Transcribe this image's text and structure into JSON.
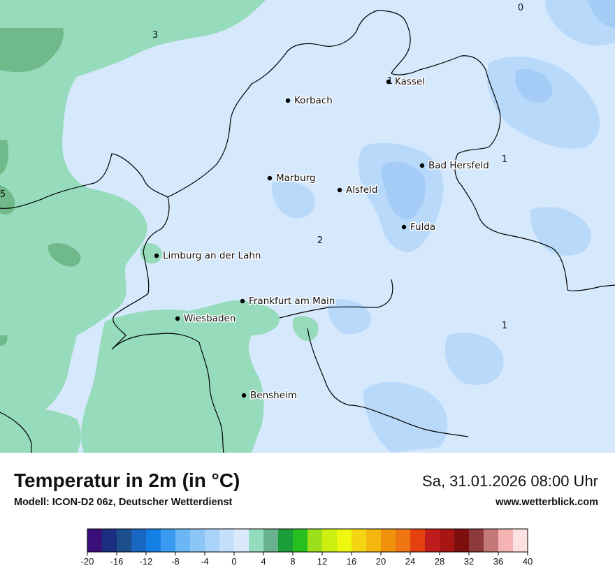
{
  "map": {
    "cities": [
      {
        "name": "Kassel"
      },
      {
        "name": "Korbach"
      },
      {
        "name": "Bad Hersfeld"
      },
      {
        "name": "Marburg"
      },
      {
        "name": "Alsfeld"
      },
      {
        "name": "Fulda"
      },
      {
        "name": "Limburg an der Lahn"
      },
      {
        "name": "Frankfurt am Main"
      },
      {
        "name": "Wiesbaden"
      },
      {
        "name": "Bensheim"
      }
    ],
    "value_labels": [
      "0",
      "3",
      "1",
      "1",
      "5",
      "2",
      "1"
    ],
    "colors": {
      "light_blue": "#d6e8fc",
      "blue": "#b8d9fa",
      "mid_blue": "#a4ccf6",
      "green": "#96dcbc",
      "dark_green": "#6fb98a",
      "border": "#000000"
    }
  },
  "footer": {
    "title": "Temperatur in 2m (in °C)",
    "model": "Modell: ICON-D2 06z, Deutscher Wetterdienst",
    "datetime": "Sa, 31.01.2026 08:00 Uhr",
    "website": "www.wetterblick.com"
  },
  "legend": {
    "ticks": [
      "-20",
      "-16",
      "-12",
      "-8",
      "-4",
      "0",
      "4",
      "8",
      "12",
      "16",
      "20",
      "24",
      "28",
      "32",
      "36",
      "40"
    ],
    "colors": [
      "#3b0f7a",
      "#1a2f80",
      "#1c4e8d",
      "#1a66c3",
      "#1480e6",
      "#3a9aef",
      "#6ab6f6",
      "#8cc6f7",
      "#a9d3fa",
      "#c4e0fb",
      "#daeafc",
      "#94dcbe",
      "#6ab28f",
      "#1b9e3a",
      "#27bf1f",
      "#9be01a",
      "#cdef10",
      "#eef80e",
      "#f3d512",
      "#f3b70e",
      "#f0920c",
      "#f07614",
      "#e5400f",
      "#bf1d1d",
      "#a71515",
      "#7f0f0f",
      "#8e3a3a",
      "#c47878",
      "#f6b3b3",
      "#fde0e0"
    ]
  }
}
